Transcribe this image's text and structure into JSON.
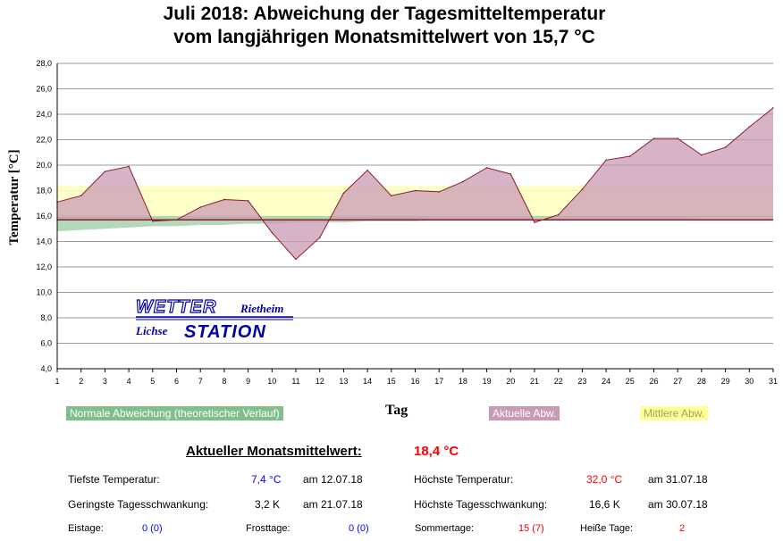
{
  "title_line1": "Juli 2018: Abweichung der Tagesmitteltemperatur",
  "title_line2": "vom langjährigen Monatsmittelwert von 15,7 °C",
  "chart_data": {
    "type": "area",
    "title": "Juli 2018: Abweichung der Tagesmitteltemperatur vom langjährigen Monatsmittelwert von 15,7 °C",
    "xlabel": "Tag",
    "ylabel": "Temperatur [°C]",
    "ylim": [
      4,
      28
    ],
    "ytick_step": 2,
    "y_ticks": [
      "4,0",
      "6,0",
      "8,0",
      "10,0",
      "12,0",
      "14,0",
      "16,0",
      "18,0",
      "20,0",
      "22,0",
      "24,0",
      "26,0",
      "28,0"
    ],
    "x": [
      1,
      2,
      3,
      4,
      5,
      6,
      7,
      8,
      9,
      10,
      11,
      12,
      13,
      14,
      15,
      16,
      17,
      18,
      19,
      20,
      21,
      22,
      23,
      24,
      25,
      26,
      27,
      28,
      29,
      30,
      31
    ],
    "baseline": 15.7,
    "series": [
      {
        "name": "Aktuelle Abw.",
        "color": "#c99ab4",
        "line_color": "#8b1a2b",
        "values": [
          17.1,
          17.6,
          19.5,
          19.9,
          15.6,
          15.7,
          16.7,
          17.3,
          17.2,
          14.7,
          12.6,
          14.3,
          17.8,
          19.6,
          17.6,
          18.0,
          17.9,
          18.7,
          19.8,
          19.3,
          15.5,
          16.1,
          18.1,
          20.4,
          20.7,
          22.1,
          22.1,
          20.8,
          21.4,
          23.0,
          24.5
        ]
      },
      {
        "name": "Mittlere Abw.",
        "color": "#ffffc0",
        "range": [
          15.7,
          18.4
        ]
      },
      {
        "name": "Normale Abweichung (theoretischer Verlauf)",
        "color": "#9fd0a8",
        "upper": [
          16.0,
          16.0,
          16.0,
          16.0,
          16.0,
          16.0,
          16.0,
          16.0,
          16.0,
          16.0,
          16.0,
          16.0,
          16.0,
          16.0,
          16.0,
          16.0,
          16.0,
          16.0,
          16.0,
          16.0,
          16.0,
          16.0,
          16.0,
          16.0,
          16.0,
          16.0,
          16.0,
          16.0,
          16.0,
          16.0,
          16.0
        ],
        "lower": [
          14.8,
          14.9,
          15.0,
          15.1,
          15.2,
          15.2,
          15.3,
          15.3,
          15.4,
          15.4,
          15.5,
          15.5,
          15.5,
          15.6,
          15.6,
          15.6,
          15.7,
          15.7,
          15.7,
          15.7,
          15.8,
          15.8,
          15.8,
          15.8,
          15.8,
          15.8,
          15.8,
          15.9,
          15.9,
          15.9,
          15.9
        ]
      }
    ]
  },
  "legend": {
    "normal": "Normale Abweichung (theoretischer Verlauf)",
    "actual": "Aktuelle Abw.",
    "mean": "Mittlere Abw.",
    "xlabel": "Tag",
    "colors": {
      "normal": "#7fbf8a",
      "actual": "#c99ab4",
      "mean": "#ffff99"
    }
  },
  "logo": {
    "line1": "WETTER",
    "line1_suffix": "Rietheim",
    "line2_prefix": "Lichse",
    "line2": "STATION"
  },
  "stats": {
    "mean_label": "Aktueller Monatsmittelwert:",
    "mean_value": "18,4 °C",
    "min_temp_label": "Tiefste Temperatur:",
    "min_temp_value": "7,4 °C",
    "min_temp_date": "am 12.07.18",
    "max_temp_label": "Höchste Temperatur:",
    "max_temp_value": "32,0 °C",
    "max_temp_date": "am 31.07.18",
    "min_swing_label": "Geringste Tagesschwankung:",
    "min_swing_value": "3,2 K",
    "min_swing_date": "am 21.07.18",
    "max_swing_label": "Höchste Tagesschwankung:",
    "max_swing_value": "16,6 K",
    "max_swing_date": "am 30.07.18",
    "ice_days_label": "Eistage:",
    "ice_days_value": "0 (0)",
    "frost_days_label": "Frosttage:",
    "frost_days_value": "0 (0)",
    "summer_days_label": "Sommertage:",
    "summer_days_value": "15 (7)",
    "hot_days_label": "Heiße Tage:",
    "hot_days_value": "2",
    "colors": {
      "blue": "#0000ff",
      "red": "#ff0000"
    }
  }
}
